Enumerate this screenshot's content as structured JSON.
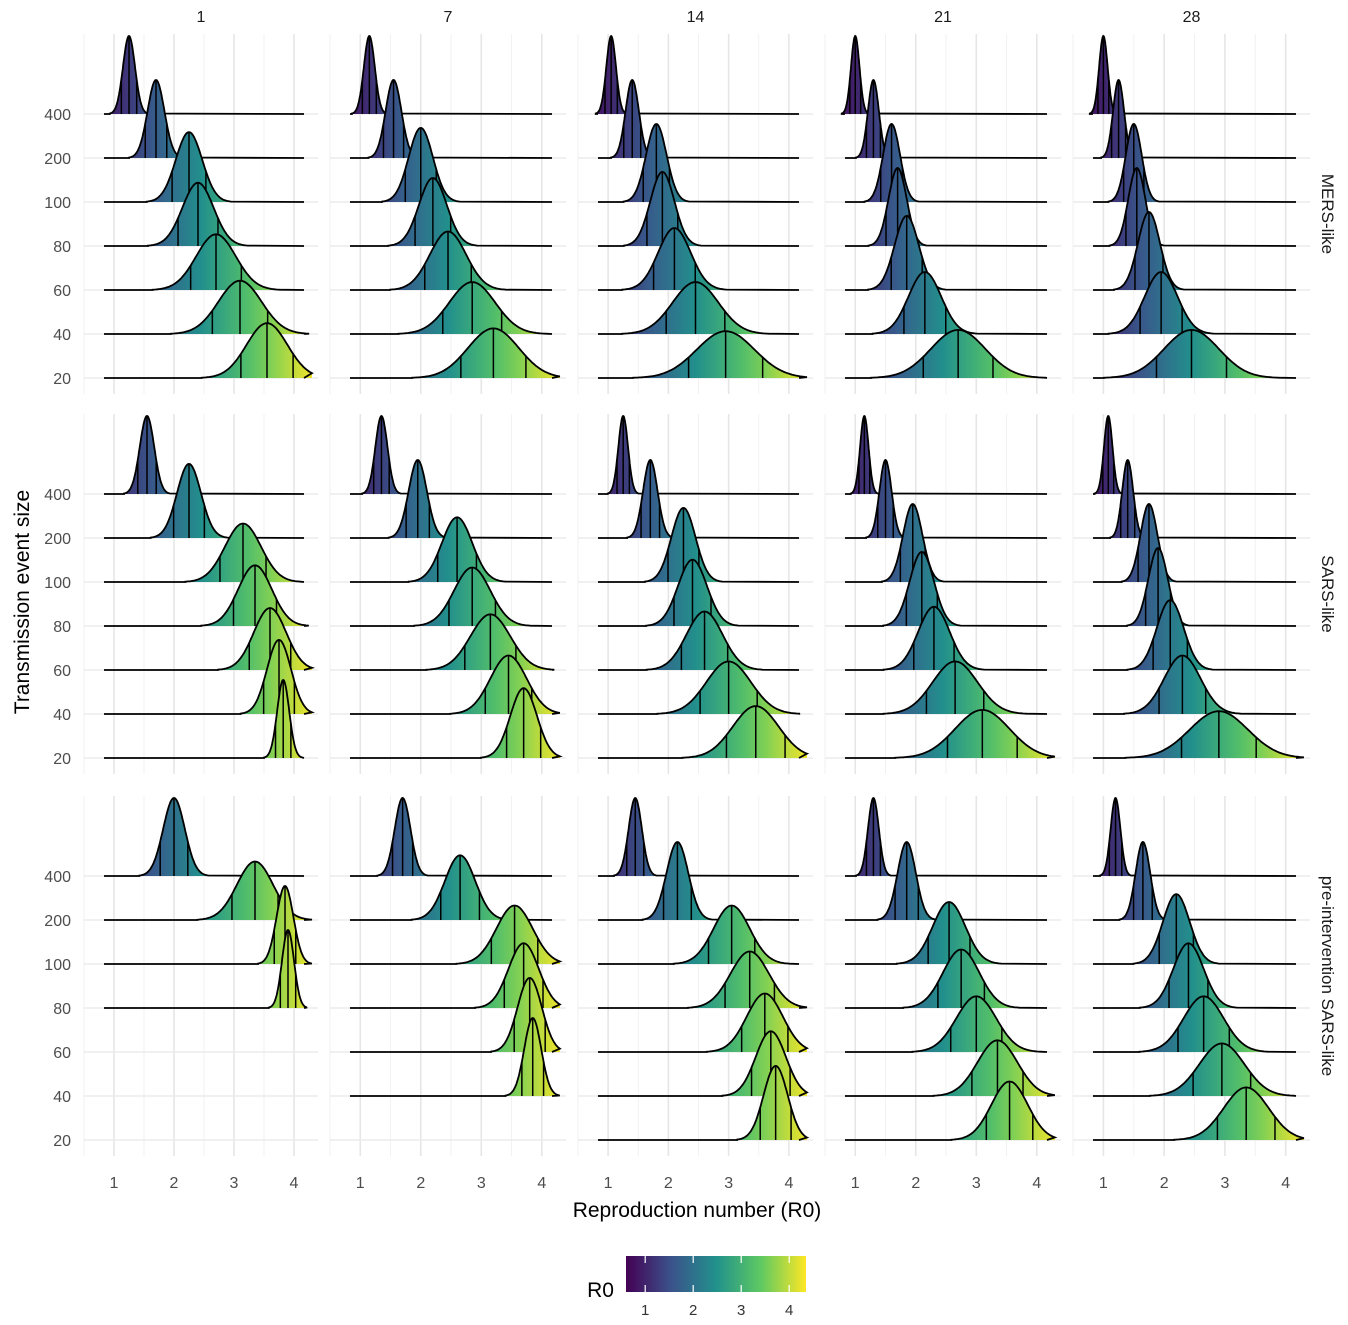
{
  "chart_data": {
    "type": "ridgeline",
    "xlabel": "Reproduction number (R0)",
    "ylabel": "Transmission event size",
    "xlim": [
      0.5,
      4.4
    ],
    "x_ticks": [
      1,
      2,
      3,
      4
    ],
    "y_categories": [
      "20",
      "40",
      "60",
      "80",
      "100",
      "200",
      "400"
    ],
    "column_facets": [
      "1",
      "7",
      "14",
      "21",
      "28"
    ],
    "row_facets": [
      "MERS-like",
      "SARS-like",
      "pre-intervention SARS-like"
    ],
    "quantile_lines": "10th, 50th and 90th percentile marks on each ridge",
    "legend": {
      "title": "R0",
      "position": "bottom",
      "ticks": [
        1,
        2,
        3,
        4
      ],
      "range": [
        0.6,
        4.35
      ],
      "colors": [
        "#440154",
        "#3b528b",
        "#21918c",
        "#5ec962",
        "#fde725"
      ]
    },
    "panels": [
      {
        "row": "MERS-like",
        "col": "1",
        "ridges": [
          {
            "size": "400",
            "median": 1.25,
            "sd": 0.1
          },
          {
            "size": "200",
            "median": 1.7,
            "sd": 0.14
          },
          {
            "size": "100",
            "median": 2.25,
            "sd": 0.22
          },
          {
            "size": "80",
            "median": 2.4,
            "sd": 0.26
          },
          {
            "size": "60",
            "median": 2.7,
            "sd": 0.33
          },
          {
            "size": "40",
            "median": 3.1,
            "sd": 0.36
          },
          {
            "size": "20",
            "median": 3.55,
            "sd": 0.34
          }
        ]
      },
      {
        "row": "MERS-like",
        "col": "7",
        "ridges": [
          {
            "size": "400",
            "median": 1.15,
            "sd": 0.09
          },
          {
            "size": "200",
            "median": 1.55,
            "sd": 0.13
          },
          {
            "size": "100",
            "median": 2.0,
            "sd": 0.2
          },
          {
            "size": "80",
            "median": 2.2,
            "sd": 0.23
          },
          {
            "size": "60",
            "median": 2.45,
            "sd": 0.3
          },
          {
            "size": "40",
            "median": 2.85,
            "sd": 0.38
          },
          {
            "size": "20",
            "median": 3.2,
            "sd": 0.42
          }
        ]
      },
      {
        "row": "MERS-like",
        "col": "14",
        "ridges": [
          {
            "size": "400",
            "median": 1.05,
            "sd": 0.08
          },
          {
            "size": "200",
            "median": 1.4,
            "sd": 0.11
          },
          {
            "size": "100",
            "median": 1.8,
            "sd": 0.17
          },
          {
            "size": "80",
            "median": 1.9,
            "sd": 0.2
          },
          {
            "size": "60",
            "median": 2.1,
            "sd": 0.27
          },
          {
            "size": "40",
            "median": 2.45,
            "sd": 0.38
          },
          {
            "size": "20",
            "median": 2.95,
            "sd": 0.48
          }
        ]
      },
      {
        "row": "MERS-like",
        "col": "21",
        "ridges": [
          {
            "size": "400",
            "median": 1.0,
            "sd": 0.07
          },
          {
            "size": "200",
            "median": 1.3,
            "sd": 0.09
          },
          {
            "size": "100",
            "median": 1.6,
            "sd": 0.14
          },
          {
            "size": "80",
            "median": 1.7,
            "sd": 0.15
          },
          {
            "size": "60",
            "median": 1.85,
            "sd": 0.2
          },
          {
            "size": "40",
            "median": 2.15,
            "sd": 0.27
          },
          {
            "size": "20",
            "median": 2.7,
            "sd": 0.45
          }
        ]
      },
      {
        "row": "MERS-like",
        "col": "28",
        "ridges": [
          {
            "size": "400",
            "median": 1.0,
            "sd": 0.07
          },
          {
            "size": "200",
            "median": 1.25,
            "sd": 0.09
          },
          {
            "size": "100",
            "median": 1.5,
            "sd": 0.13
          },
          {
            "size": "80",
            "median": 1.55,
            "sd": 0.14
          },
          {
            "size": "60",
            "median": 1.75,
            "sd": 0.18
          },
          {
            "size": "40",
            "median": 1.95,
            "sd": 0.27
          },
          {
            "size": "20",
            "median": 2.45,
            "sd": 0.45
          }
        ]
      },
      {
        "row": "SARS-like",
        "col": "1",
        "ridges": [
          {
            "size": "400",
            "median": 1.55,
            "sd": 0.12
          },
          {
            "size": "200",
            "median": 2.25,
            "sd": 0.2
          },
          {
            "size": "100",
            "median": 3.15,
            "sd": 0.3
          },
          {
            "size": "80",
            "median": 3.35,
            "sd": 0.28
          },
          {
            "size": "60",
            "median": 3.6,
            "sd": 0.27
          },
          {
            "size": "40",
            "median": 3.75,
            "sd": 0.2
          },
          {
            "size": "20",
            "median": 3.82,
            "sd": 0.1
          }
        ]
      },
      {
        "row": "SARS-like",
        "col": "7",
        "ridges": [
          {
            "size": "400",
            "median": 1.35,
            "sd": 0.1
          },
          {
            "size": "200",
            "median": 1.95,
            "sd": 0.15
          },
          {
            "size": "100",
            "median": 2.6,
            "sd": 0.25
          },
          {
            "size": "80",
            "median": 2.85,
            "sd": 0.3
          },
          {
            "size": "60",
            "median": 3.15,
            "sd": 0.33
          },
          {
            "size": "40",
            "median": 3.45,
            "sd": 0.3
          },
          {
            "size": "20",
            "median": 3.7,
            "sd": 0.22
          }
        ]
      },
      {
        "row": "SARS-like",
        "col": "14",
        "ridges": [
          {
            "size": "400",
            "median": 1.25,
            "sd": 0.08
          },
          {
            "size": "200",
            "median": 1.7,
            "sd": 0.12
          },
          {
            "size": "100",
            "median": 2.25,
            "sd": 0.2
          },
          {
            "size": "80",
            "median": 2.4,
            "sd": 0.24
          },
          {
            "size": "60",
            "median": 2.6,
            "sd": 0.3
          },
          {
            "size": "40",
            "median": 3.0,
            "sd": 0.37
          },
          {
            "size": "20",
            "median": 3.45,
            "sd": 0.38
          }
        ]
      },
      {
        "row": "SARS-like",
        "col": "21",
        "ridges": [
          {
            "size": "400",
            "median": 1.15,
            "sd": 0.07
          },
          {
            "size": "200",
            "median": 1.5,
            "sd": 0.1
          },
          {
            "size": "100",
            "median": 1.95,
            "sd": 0.16
          },
          {
            "size": "80",
            "median": 2.1,
            "sd": 0.2
          },
          {
            "size": "60",
            "median": 2.3,
            "sd": 0.26
          },
          {
            "size": "40",
            "median": 2.65,
            "sd": 0.37
          },
          {
            "size": "20",
            "median": 3.1,
            "sd": 0.45
          }
        ]
      },
      {
        "row": "SARS-like",
        "col": "28",
        "ridges": [
          {
            "size": "400",
            "median": 1.08,
            "sd": 0.07
          },
          {
            "size": "200",
            "median": 1.4,
            "sd": 0.09
          },
          {
            "size": "100",
            "median": 1.75,
            "sd": 0.14
          },
          {
            "size": "80",
            "median": 1.9,
            "sd": 0.16
          },
          {
            "size": "60",
            "median": 2.1,
            "sd": 0.22
          },
          {
            "size": "40",
            "median": 2.3,
            "sd": 0.3
          },
          {
            "size": "20",
            "median": 2.9,
            "sd": 0.48
          }
        ]
      },
      {
        "row": "pre-intervention SARS-like",
        "col": "1",
        "ridges": [
          {
            "size": "400",
            "median": 2.0,
            "sd": 0.18
          },
          {
            "size": "200",
            "median": 3.35,
            "sd": 0.3
          },
          {
            "size": "100",
            "median": 3.85,
            "sd": 0.14
          },
          {
            "size": "80",
            "median": 3.9,
            "sd": 0.1
          }
        ]
      },
      {
        "row": "pre-intervention SARS-like",
        "col": "7",
        "ridges": [
          {
            "size": "400",
            "median": 1.7,
            "sd": 0.13
          },
          {
            "size": "200",
            "median": 2.65,
            "sd": 0.25
          },
          {
            "size": "100",
            "median": 3.55,
            "sd": 0.3
          },
          {
            "size": "80",
            "median": 3.7,
            "sd": 0.25
          },
          {
            "size": "60",
            "median": 3.8,
            "sd": 0.2
          },
          {
            "size": "40",
            "median": 3.85,
            "sd": 0.14
          }
        ]
      },
      {
        "row": "pre-intervention SARS-like",
        "col": "14",
        "ridges": [
          {
            "size": "400",
            "median": 1.45,
            "sd": 0.11
          },
          {
            "size": "200",
            "median": 2.15,
            "sd": 0.18
          },
          {
            "size": "100",
            "median": 3.05,
            "sd": 0.3
          },
          {
            "size": "80",
            "median": 3.35,
            "sd": 0.32
          },
          {
            "size": "60",
            "median": 3.6,
            "sd": 0.3
          },
          {
            "size": "40",
            "median": 3.7,
            "sd": 0.25
          },
          {
            "size": "20",
            "median": 3.78,
            "sd": 0.2
          }
        ]
      },
      {
        "row": "pre-intervention SARS-like",
        "col": "21",
        "ridges": [
          {
            "size": "400",
            "median": 1.3,
            "sd": 0.09
          },
          {
            "size": "200",
            "median": 1.85,
            "sd": 0.15
          },
          {
            "size": "100",
            "median": 2.55,
            "sd": 0.27
          },
          {
            "size": "80",
            "median": 2.75,
            "sd": 0.3
          },
          {
            "size": "60",
            "median": 3.0,
            "sd": 0.33
          },
          {
            "size": "40",
            "median": 3.35,
            "sd": 0.33
          },
          {
            "size": "20",
            "median": 3.55,
            "sd": 0.3
          }
        ]
      },
      {
        "row": "pre-intervention SARS-like",
        "col": "28",
        "ridges": [
          {
            "size": "400",
            "median": 1.2,
            "sd": 0.08
          },
          {
            "size": "200",
            "median": 1.65,
            "sd": 0.12
          },
          {
            "size": "100",
            "median": 2.2,
            "sd": 0.22
          },
          {
            "size": "80",
            "median": 2.4,
            "sd": 0.25
          },
          {
            "size": "60",
            "median": 2.65,
            "sd": 0.33
          },
          {
            "size": "40",
            "median": 2.95,
            "sd": 0.37
          },
          {
            "size": "20",
            "median": 3.35,
            "sd": 0.37
          }
        ]
      }
    ]
  }
}
